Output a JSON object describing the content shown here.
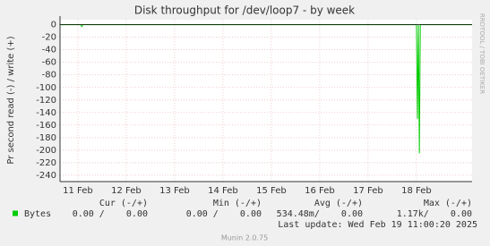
{
  "chart_data": {
    "type": "line",
    "title": "Disk throughput for /dev/loop7 - by week",
    "y_label": "Pr second read (-) / write (+)",
    "side_label": "RRDTOOL / TOBI OETIKER",
    "xlim": [
      10.63,
      19.15
    ],
    "xticks": [
      {
        "value": 11,
        "label": "11 Feb"
      },
      {
        "value": 12,
        "label": "12 Feb"
      },
      {
        "value": 13,
        "label": "13 Feb"
      },
      {
        "value": 14,
        "label": "14 Feb"
      },
      {
        "value": 15,
        "label": "15 Feb"
      },
      {
        "value": 16,
        "label": "16 Feb"
      },
      {
        "value": 17,
        "label": "17 Feb"
      },
      {
        "value": 18,
        "label": "18 Feb"
      }
    ],
    "ylim": [
      -250,
      8
    ],
    "yticks": [
      0,
      -20,
      -40,
      -60,
      -80,
      -100,
      -120,
      -140,
      -160,
      -180,
      -200,
      -220,
      -240
    ],
    "grid": true,
    "series": [
      {
        "name": "Bytes",
        "color": "#00cc00",
        "x": [
          10.63,
          11.06,
          11.08,
          11.1,
          18.0,
          18.02,
          18.04,
          18.06,
          18.08,
          19.15
        ],
        "values": [
          0,
          0,
          -3,
          0,
          0,
          -150,
          0,
          -205,
          0,
          0
        ]
      }
    ],
    "summary_headers": [
      "Cur (-/+)",
      "Min (-/+)",
      "Avg (-/+)",
      "Max (-/+)"
    ],
    "summary_values": [
      "0.00 /    0.00",
      "0.00 /    0.00",
      "534.48m/    0.00",
      "1.17k/    0.00"
    ],
    "last_update": "Last update: Wed Feb 19 11:00:20 2025",
    "footer": "Munin 2.0.75"
  }
}
